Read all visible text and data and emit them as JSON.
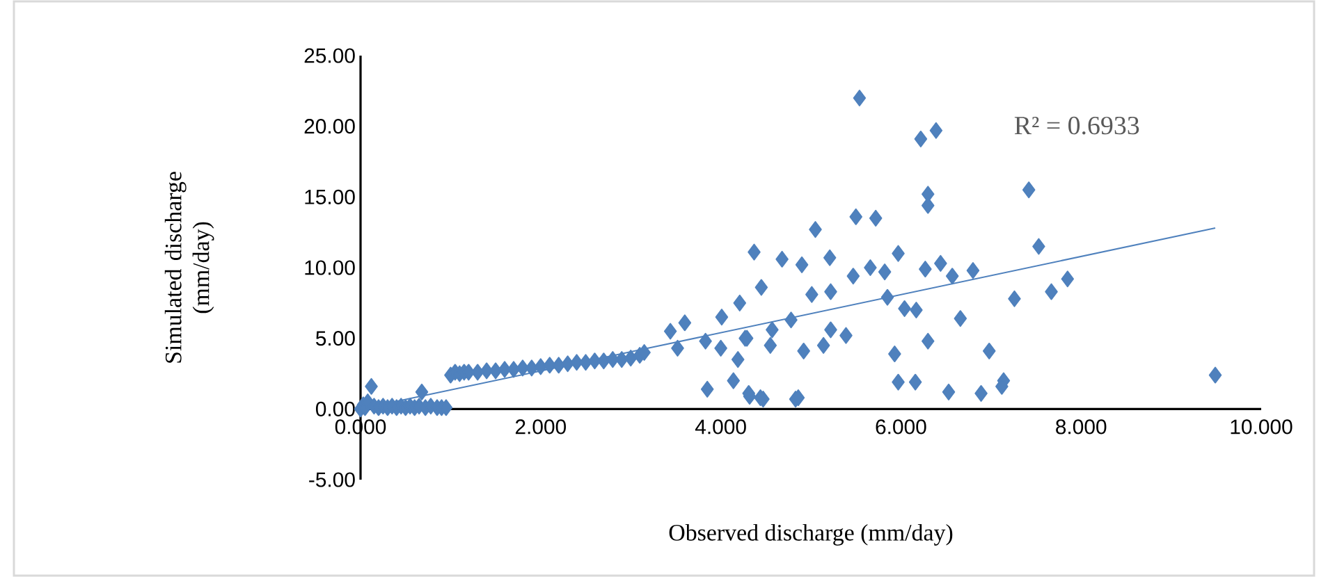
{
  "chart_data": {
    "type": "scatter",
    "xlabel": "Observed discharge (mm/day)",
    "ylabel": "Simulated discharge (mm/day)",
    "annotations": [
      "R² = 0.6933"
    ],
    "xlim": [
      0,
      10
    ],
    "ylim": [
      -5,
      25
    ],
    "xticks": [
      {
        "value": 0,
        "label": "0.000"
      },
      {
        "value": 2,
        "label": "2.000"
      },
      {
        "value": 4,
        "label": "4.000"
      },
      {
        "value": 6,
        "label": "6.000"
      },
      {
        "value": 8,
        "label": "8.000"
      },
      {
        "value": 10,
        "label": "10.000"
      }
    ],
    "yticks": [
      {
        "value": -5,
        "label": "-5.00"
      },
      {
        "value": 0,
        "label": "0.00"
      },
      {
        "value": 5,
        "label": "5.00"
      },
      {
        "value": 10,
        "label": "10.00"
      },
      {
        "value": 15,
        "label": "15.00"
      },
      {
        "value": 20,
        "label": "20.00"
      },
      {
        "value": 25,
        "label": "25.00"
      }
    ],
    "marker": "diamond",
    "series": [
      {
        "color": "#4f81bd",
        "x": [
          0,
          0.03,
          0.05,
          0.08,
          0.12,
          0.15,
          0.2,
          0.25,
          0.3,
          0.35,
          0.4,
          0.45,
          0.5,
          0.55,
          0.6,
          0.65,
          0.68,
          0.72,
          0.78,
          0.85,
          0.9,
          0.95,
          1.0,
          1.05,
          1.1,
          1.15,
          1.2,
          1.3,
          1.4,
          1.5,
          1.6,
          1.7,
          1.8,
          1.9,
          2.0,
          2.1,
          2.2,
          2.3,
          2.4,
          2.5,
          2.6,
          2.7,
          2.8,
          2.9,
          3.0,
          3.1,
          3.15,
          4.37,
          4.68,
          4.45,
          4.21,
          4.01,
          3.6,
          3.44,
          3.83,
          4.27,
          4.55,
          4.19,
          4.14,
          3.85,
          4.32,
          4.47,
          4.83,
          3.52,
          5.54,
          6.22,
          6.39,
          6.3,
          6.3,
          7.42,
          5.5,
          5.72,
          5.05,
          7.53,
          5.21,
          5.97,
          4.9,
          7.85,
          7.67,
          7.26,
          6.8,
          6.44,
          6.57,
          6.27,
          5.82,
          5.66,
          5.47,
          5.22,
          5.85,
          6.04,
          6.17,
          5.01,
          6.66,
          4.78,
          4.57,
          5.22,
          5.39,
          5.14,
          4.29,
          4.0,
          4.92,
          6.3,
          5.93,
          6.98,
          5.97,
          6.16,
          7.14,
          7.12,
          6.53,
          6.89,
          4.86,
          4.44,
          4.31,
          9.49
        ],
        "values": [
          0,
          0.3,
          0.1,
          0.5,
          1.6,
          0.2,
          0.1,
          0.2,
          0.1,
          0.2,
          0.1,
          0.2,
          0.1,
          0.2,
          0.1,
          0.2,
          1.2,
          0.1,
          0.2,
          0.1,
          0.1,
          0.1,
          2.4,
          2.6,
          2.5,
          2.6,
          2.6,
          2.6,
          2.7,
          2.7,
          2.8,
          2.8,
          2.9,
          2.9,
          3.0,
          3.1,
          3.1,
          3.2,
          3.3,
          3.3,
          3.4,
          3.4,
          3.5,
          3.5,
          3.6,
          3.8,
          4.0,
          11.1,
          10.6,
          8.6,
          7.5,
          6.5,
          6.1,
          5.5,
          4.8,
          5.0,
          4.5,
          3.5,
          2.0,
          1.4,
          0.9,
          0.7,
          0.7,
          4.3,
          22.0,
          19.1,
          19.7,
          15.2,
          14.4,
          15.5,
          13.6,
          13.5,
          12.7,
          11.5,
          10.7,
          11.0,
          10.2,
          9.2,
          8.3,
          7.8,
          9.8,
          10.3,
          9.4,
          9.9,
          9.7,
          10.0,
          9.4,
          8.3,
          7.9,
          7.1,
          7.0,
          8.1,
          6.4,
          6.3,
          5.6,
          5.6,
          5.2,
          4.5,
          5.0,
          4.3,
          4.1,
          4.8,
          3.9,
          4.1,
          1.9,
          1.9,
          2.0,
          1.6,
          1.2,
          1.1,
          0.8,
          0.8,
          1.1,
          2.4
        ]
      },
      {
        "type": "line",
        "color": "#4f81bd",
        "marker": "none",
        "x": [
          0,
          9.49
        ],
        "values": [
          0,
          12.8
        ]
      }
    ]
  }
}
